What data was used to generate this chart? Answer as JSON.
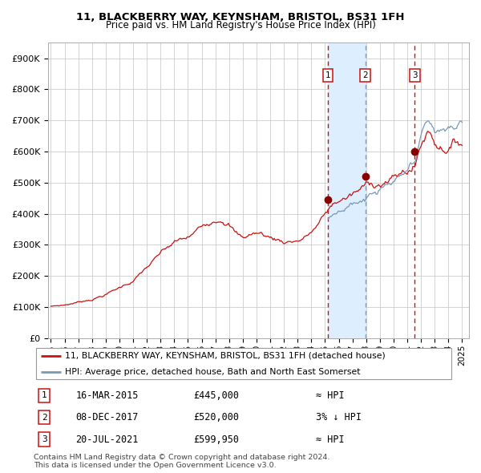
{
  "title1": "11, BLACKBERRY WAY, KEYNSHAM, BRISTOL, BS31 1FH",
  "title2": "Price paid vs. HM Land Registry's House Price Index (HPI)",
  "ylim": [
    0,
    950000
  ],
  "yticks": [
    0,
    100000,
    200000,
    300000,
    400000,
    500000,
    600000,
    700000,
    800000,
    900000
  ],
  "ytick_labels": [
    "£0",
    "£100K",
    "£200K",
    "£300K",
    "£400K",
    "£500K",
    "£600K",
    "£700K",
    "£800K",
    "£900K"
  ],
  "xlim_start": 1994.8,
  "xlim_end": 2025.5,
  "xticks": [
    1995,
    1996,
    1997,
    1998,
    1999,
    2000,
    2001,
    2002,
    2003,
    2004,
    2005,
    2006,
    2007,
    2008,
    2009,
    2010,
    2011,
    2012,
    2013,
    2014,
    2015,
    2016,
    2017,
    2018,
    2019,
    2020,
    2021,
    2022,
    2023,
    2024,
    2025
  ],
  "hpi_color": "#7799bb",
  "price_color": "#cc1111",
  "dot_color": "#880000",
  "vline_red_color": "#cc1111",
  "vline_blue_color": "#8899bb",
  "bg_color": "#ffffff",
  "plot_bg_color": "#ffffff",
  "grid_color": "#cccccc",
  "shade_color": "#ddeeff",
  "legend_line1": "11, BLACKBERRY WAY, KEYNSHAM, BRISTOL, BS31 1FH (detached house)",
  "legend_line2": "HPI: Average price, detached house, Bath and North East Somerset",
  "transaction1": {
    "num": 1,
    "date": "16-MAR-2015",
    "price": 445000,
    "year": 2015.21
  },
  "transaction2": {
    "num": 2,
    "date": "08-DEC-2017",
    "price": 520000,
    "year": 2017.93
  },
  "transaction3": {
    "num": 3,
    "date": "20-JUL-2021",
    "price": 599950,
    "year": 2021.54
  },
  "t1_hpi_rel": "≈ HPI",
  "t2_hpi_rel": "3% ↓ HPI",
  "t3_hpi_rel": "≈ HPI",
  "footnote1": "Contains HM Land Registry data © Crown copyright and database right 2024.",
  "footnote2": "This data is licensed under the Open Government Licence v3.0."
}
